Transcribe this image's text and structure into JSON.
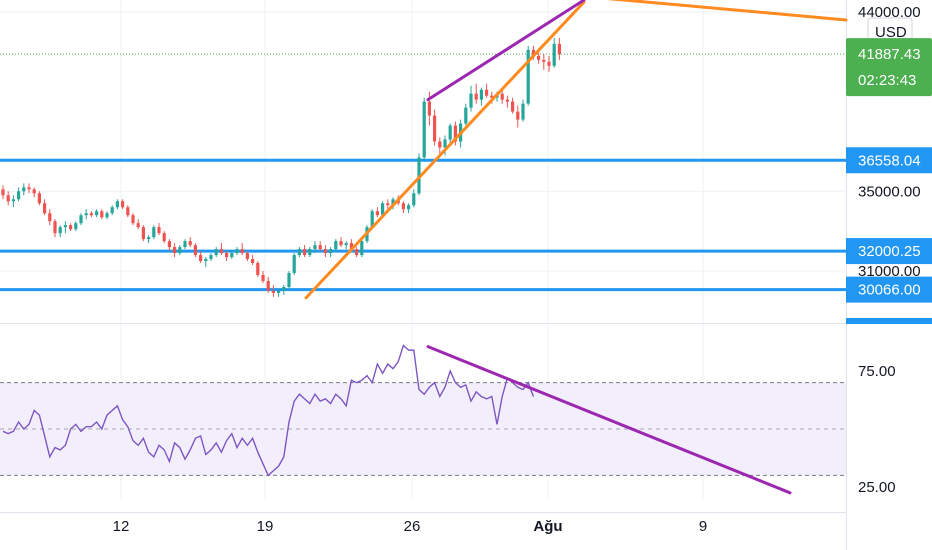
{
  "chart_data": [
    {
      "type": "candlestick",
      "currency": "USD",
      "y_axis": {
        "ticks": [
          "44000.00",
          "35000.00",
          "31000.00"
        ],
        "tick_values": [
          44000,
          35000,
          31000
        ],
        "range": [
          29000,
          44700
        ]
      },
      "x_axis": {
        "ticks": [
          "12",
          "19",
          "26",
          "Ağu",
          "9"
        ]
      },
      "last_price": {
        "label": "41887.43",
        "countdown": "02:23:43",
        "color": "#4caf50"
      },
      "horizontal_levels": [
        {
          "label": "36558.04",
          "value": 36558.04,
          "color": "#2196f3"
        },
        {
          "label": "32000.25",
          "value": 32000.25,
          "color": "#2196f3"
        },
        {
          "label": "30066.00",
          "value": 30066.0,
          "color": "#2196f3"
        }
      ],
      "trendlines": [
        {
          "color": "#ff8a1f",
          "points": [
            [
              "Jul 21",
              29650
            ],
            [
              "Aug 2",
              44500
            ]
          ]
        },
        {
          "color": "#ff8a1f",
          "points": [
            [
              "Aug 3",
              44700
            ],
            [
              "Aug 14",
              43600
            ]
          ]
        },
        {
          "color": "#9c27b0",
          "points": [
            [
              "Jul 27",
              39600
            ],
            [
              "Aug 2",
              44600
            ]
          ]
        }
      ],
      "colors": {
        "up": "#26a69a",
        "down": "#ef5350"
      },
      "candles": [
        [
          35100,
          35300,
          34600,
          34800
        ],
        [
          34800,
          35000,
          34300,
          34500
        ],
        [
          34500,
          34800,
          34200,
          34600
        ],
        [
          34600,
          35200,
          34500,
          35000
        ],
        [
          35000,
          35400,
          34800,
          35200
        ],
        [
          35200,
          35400,
          34900,
          35100
        ],
        [
          35100,
          35200,
          34700,
          34900
        ],
        [
          34900,
          35000,
          34300,
          34400
        ],
        [
          34400,
          34600,
          33800,
          33900
        ],
        [
          33900,
          34100,
          33300,
          33500
        ],
        [
          33500,
          33600,
          32700,
          32900
        ],
        [
          32900,
          33300,
          32700,
          33200
        ],
        [
          33200,
          33500,
          32900,
          33300
        ],
        [
          33300,
          33400,
          33000,
          33100
        ],
        [
          33100,
          33500,
          33000,
          33400
        ],
        [
          33400,
          33900,
          33300,
          33800
        ],
        [
          33800,
          34100,
          33600,
          33900
        ],
        [
          33900,
          34000,
          33700,
          33800
        ],
        [
          33800,
          34100,
          33700,
          34000
        ],
        [
          34000,
          34100,
          33600,
          33700
        ],
        [
          33700,
          34000,
          33600,
          33900
        ],
        [
          33900,
          34300,
          33800,
          34200
        ],
        [
          34200,
          34600,
          34100,
          34500
        ],
        [
          34500,
          34600,
          34100,
          34200
        ],
        [
          34200,
          34300,
          33700,
          33800
        ],
        [
          33800,
          33900,
          33300,
          33400
        ],
        [
          33400,
          33600,
          33100,
          33200
        ],
        [
          33200,
          33300,
          32500,
          32600
        ],
        [
          32600,
          32800,
          32400,
          32700
        ],
        [
          32700,
          33300,
          32600,
          33200
        ],
        [
          33200,
          33400,
          32800,
          32900
        ],
        [
          32900,
          33000,
          32400,
          32500
        ],
        [
          32500,
          32600,
          32000,
          32200
        ],
        [
          32200,
          32400,
          31700,
          31900
        ],
        [
          31900,
          32300,
          31800,
          32200
        ],
        [
          32200,
          32600,
          32100,
          32500
        ],
        [
          32500,
          32700,
          32200,
          32300
        ],
        [
          32300,
          32400,
          31700,
          31800
        ],
        [
          31800,
          32000,
          31400,
          31500
        ],
        [
          31500,
          31700,
          31200,
          31600
        ],
        [
          31600,
          31900,
          31500,
          31800
        ],
        [
          31800,
          32200,
          31700,
          32100
        ],
        [
          32100,
          32400,
          31800,
          31900
        ],
        [
          31900,
          32000,
          31500,
          31700
        ],
        [
          31700,
          32000,
          31600,
          31900
        ],
        [
          31900,
          32200,
          31800,
          32100
        ],
        [
          32100,
          32400,
          31800,
          31900
        ],
        [
          31900,
          32000,
          31500,
          31600
        ],
        [
          31600,
          31800,
          31300,
          31400
        ],
        [
          31400,
          31500,
          30700,
          30800
        ],
        [
          30800,
          31000,
          30400,
          30500
        ],
        [
          30500,
          30700,
          29900,
          30000
        ],
        [
          30000,
          30300,
          29700,
          29900
        ],
        [
          29900,
          30100,
          29700,
          30000
        ],
        [
          30000,
          30300,
          29800,
          30200
        ],
        [
          30200,
          31000,
          30100,
          30900
        ],
        [
          30900,
          31900,
          30800,
          31800
        ],
        [
          31800,
          32200,
          31700,
          32100
        ],
        [
          32100,
          32300,
          31700,
          31800
        ],
        [
          31800,
          32200,
          31700,
          32100
        ],
        [
          32100,
          32500,
          31900,
          32300
        ],
        [
          32300,
          32500,
          32000,
          32100
        ],
        [
          32100,
          32300,
          31700,
          31900
        ],
        [
          31900,
          32200,
          31700,
          32100
        ],
        [
          32100,
          32600,
          32000,
          32500
        ],
        [
          32500,
          32700,
          32200,
          32300
        ],
        [
          32300,
          32500,
          32100,
          32400
        ],
        [
          32400,
          32600,
          32000,
          32100
        ],
        [
          32100,
          32200,
          31700,
          31800
        ],
        [
          31800,
          32600,
          31700,
          32500
        ],
        [
          32500,
          33300,
          32400,
          33200
        ],
        [
          33200,
          34100,
          33100,
          34000
        ],
        [
          34000,
          34200,
          33700,
          33800
        ],
        [
          33800,
          34500,
          33700,
          34400
        ],
        [
          34400,
          34600,
          34100,
          34300
        ],
        [
          34300,
          34700,
          34100,
          34600
        ],
        [
          34600,
          34800,
          34300,
          34400
        ],
        [
          34400,
          34500,
          33900,
          34100
        ],
        [
          34100,
          34400,
          33900,
          34300
        ],
        [
          34300,
          35100,
          34200,
          34900
        ],
        [
          34900,
          36900,
          34800,
          36700
        ],
        [
          36700,
          39700,
          36600,
          39500
        ],
        [
          39500,
          40000,
          38300,
          38800
        ],
        [
          38800,
          39100,
          37300,
          37500
        ],
        [
          37500,
          37700,
          36900,
          37200
        ],
        [
          37200,
          37800,
          36800,
          37600
        ],
        [
          37600,
          38400,
          37400,
          38300
        ],
        [
          38300,
          38500,
          37300,
          37500
        ],
        [
          37500,
          38600,
          37200,
          38400
        ],
        [
          38400,
          39400,
          38300,
          39200
        ],
        [
          39200,
          40300,
          39000,
          39900
        ],
        [
          39900,
          40400,
          39400,
          39600
        ],
        [
          39600,
          40200,
          39300,
          40100
        ],
        [
          40100,
          40400,
          39700,
          39800
        ],
        [
          39800,
          40000,
          39400,
          39700
        ],
        [
          39700,
          40000,
          39500,
          39900
        ],
        [
          39900,
          40100,
          39400,
          39600
        ],
        [
          39600,
          39800,
          39200,
          39500
        ],
        [
          39500,
          39700,
          38900,
          39000
        ],
        [
          39000,
          39300,
          38200,
          38600
        ],
        [
          38600,
          39600,
          38500,
          39400
        ],
        [
          39400,
          42300,
          39300,
          42100
        ],
        [
          42100,
          42300,
          41600,
          41800
        ],
        [
          41800,
          42100,
          41400,
          41600
        ],
        [
          41600,
          41900,
          41100,
          41500
        ],
        [
          41500,
          41800,
          41000,
          41300
        ],
        [
          41300,
          42700,
          41200,
          42400
        ],
        [
          42400,
          42700,
          41600,
          41887.43
        ]
      ]
    },
    {
      "type": "line",
      "indicator": "RSI",
      "y_axis": {
        "ticks": [
          "75.00",
          "25.00"
        ],
        "tick_values": [
          75,
          25
        ],
        "range": [
          18,
          88
        ]
      },
      "overbought": 70,
      "oversold": 30,
      "midline": 50,
      "line_color": "#7e57c2",
      "band_color": "#f3eefc",
      "trendline": {
        "color": "#9c27b0",
        "points": [
          [
            "Jul 27",
            85.5
          ],
          [
            "Aug 12",
            22.5
          ]
        ]
      },
      "values": [
        49,
        48,
        49,
        53,
        50,
        52,
        58,
        56,
        47,
        38,
        42,
        41,
        43,
        50,
        52,
        49,
        51,
        51,
        53,
        50,
        56,
        58,
        60,
        54,
        51,
        45,
        43,
        46,
        40,
        38,
        43,
        41,
        36,
        44,
        42,
        37,
        41,
        46,
        47,
        39,
        41,
        44,
        40,
        45,
        48,
        42,
        46,
        43,
        46,
        40,
        35,
        30,
        32,
        34,
        38,
        53,
        62,
        65,
        63,
        61,
        65,
        62,
        63,
        61,
        65,
        63,
        60,
        71,
        70,
        71,
        73,
        70,
        78,
        74,
        78,
        76,
        79,
        86,
        84,
        84,
        67,
        65,
        68,
        70,
        64,
        68,
        75,
        70,
        68,
        69,
        62,
        66,
        64,
        63,
        64,
        52,
        64,
        72,
        70,
        68,
        67,
        70,
        64
      ]
    }
  ]
}
